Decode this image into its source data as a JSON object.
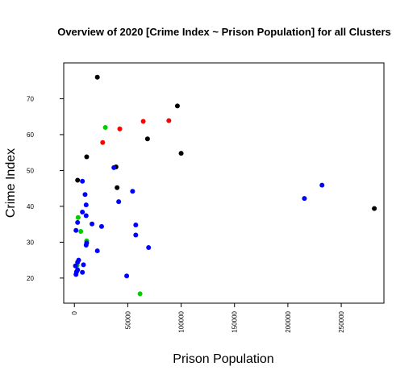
{
  "chart_data": {
    "type": "scatter",
    "title": "Overview of 2020 [Crime Index ~ Prison Population] for all Clusters",
    "xlabel": "Prison Population",
    "ylabel": "Crime Index",
    "xlim": [
      -10000,
      290000
    ],
    "ylim": [
      13,
      80
    ],
    "x_ticks": [
      0,
      50000,
      100000,
      150000,
      200000,
      250000
    ],
    "x_tick_labels": [
      "0",
      "50000",
      "100000",
      "150000",
      "200000",
      "250000"
    ],
    "y_ticks": [
      20,
      30,
      40,
      50,
      60,
      70
    ],
    "y_tick_labels": [
      "20",
      "30",
      "40",
      "50",
      "60",
      "70"
    ],
    "grid": false,
    "legend": "none",
    "series": [
      {
        "color": "#000000",
        "points": [
          {
            "x": 21500,
            "y": 76.0
          },
          {
            "x": 96500,
            "y": 68.0
          },
          {
            "x": 68500,
            "y": 58.8
          },
          {
            "x": 100000,
            "y": 54.8
          },
          {
            "x": 11500,
            "y": 53.8
          },
          {
            "x": 3000,
            "y": 47.3
          },
          {
            "x": 39000,
            "y": 51.0
          },
          {
            "x": 40000,
            "y": 45.2
          },
          {
            "x": 281000,
            "y": 39.4
          }
        ]
      },
      {
        "color": "#ff0000",
        "points": [
          {
            "x": 64500,
            "y": 63.7
          },
          {
            "x": 88500,
            "y": 63.9
          },
          {
            "x": 42500,
            "y": 61.6
          },
          {
            "x": 26500,
            "y": 57.8
          }
        ]
      },
      {
        "color": "#00cc00",
        "points": [
          {
            "x": 29000,
            "y": 62.0
          },
          {
            "x": 3500,
            "y": 36.9
          },
          {
            "x": 6000,
            "y": 33.0
          },
          {
            "x": 11500,
            "y": 30.4
          },
          {
            "x": 2500,
            "y": 23.5
          },
          {
            "x": 61500,
            "y": 15.6
          }
        ]
      },
      {
        "color": "#0000ff",
        "points": [
          {
            "x": 37000,
            "y": 50.8
          },
          {
            "x": 7500,
            "y": 47.0
          },
          {
            "x": 10000,
            "y": 43.3
          },
          {
            "x": 54500,
            "y": 44.2
          },
          {
            "x": 41500,
            "y": 41.3
          },
          {
            "x": 11000,
            "y": 40.4
          },
          {
            "x": 7500,
            "y": 38.4
          },
          {
            "x": 11000,
            "y": 37.4
          },
          {
            "x": 3000,
            "y": 35.5
          },
          {
            "x": 16500,
            "y": 35.1
          },
          {
            "x": 25500,
            "y": 34.4
          },
          {
            "x": 57500,
            "y": 34.8
          },
          {
            "x": 1500,
            "y": 33.3
          },
          {
            "x": 57500,
            "y": 32.0
          },
          {
            "x": 11500,
            "y": 29.8
          },
          {
            "x": 11000,
            "y": 29.2
          },
          {
            "x": 69500,
            "y": 28.5
          },
          {
            "x": 21500,
            "y": 27.6
          },
          {
            "x": 4000,
            "y": 25.0
          },
          {
            "x": 3000,
            "y": 24.4
          },
          {
            "x": 8500,
            "y": 23.7
          },
          {
            "x": 1000,
            "y": 23.4
          },
          {
            "x": 3000,
            "y": 22.3
          },
          {
            "x": 2000,
            "y": 21.7
          },
          {
            "x": 1500,
            "y": 21.0
          },
          {
            "x": 7500,
            "y": 21.6
          },
          {
            "x": 49000,
            "y": 20.6
          },
          {
            "x": 215500,
            "y": 42.2
          },
          {
            "x": 232000,
            "y": 45.9
          }
        ]
      }
    ]
  }
}
